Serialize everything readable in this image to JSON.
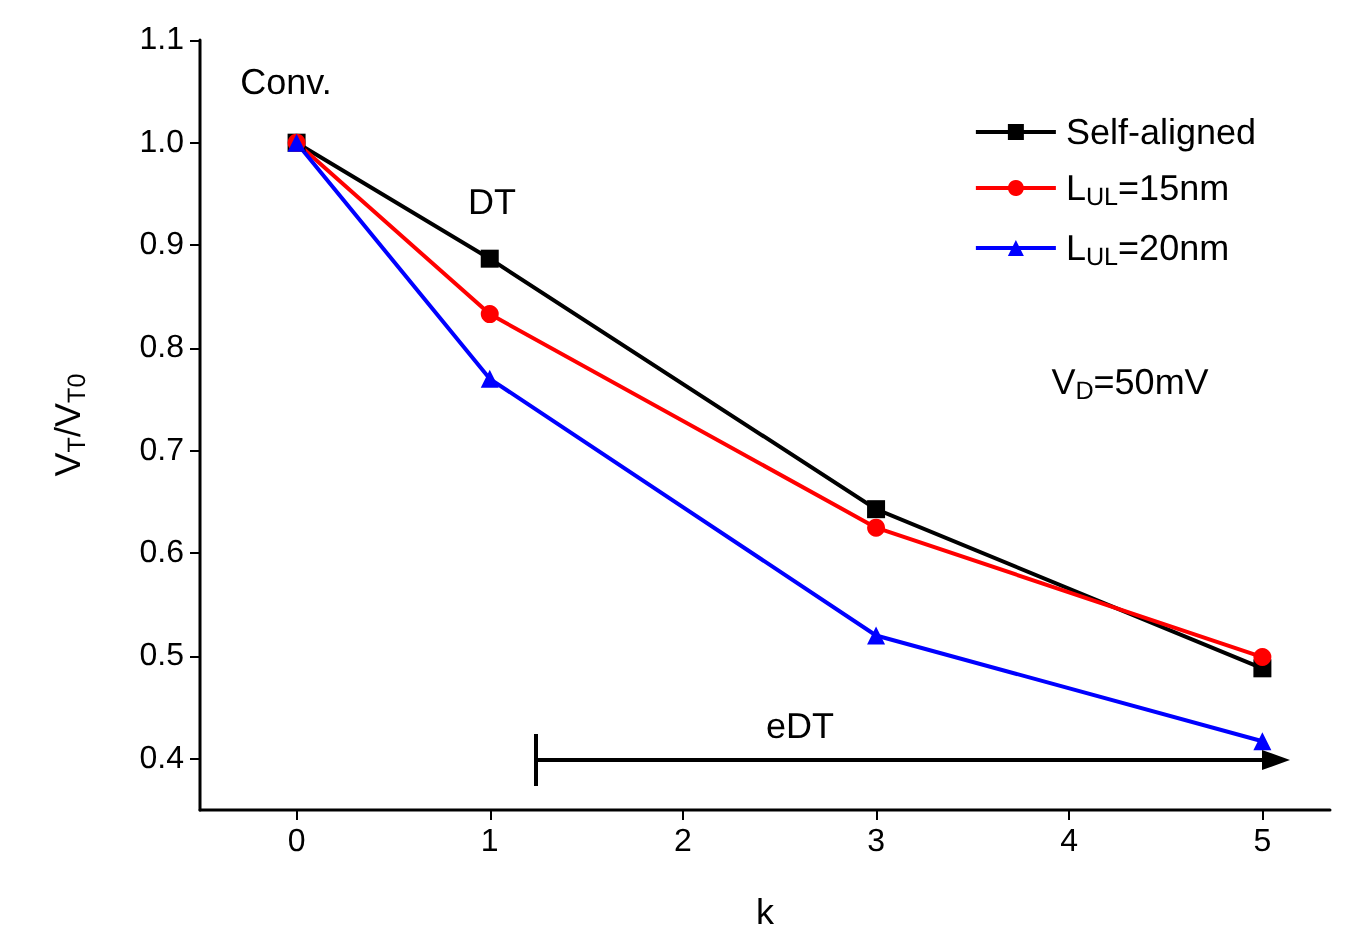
{
  "chart_data": {
    "type": "line",
    "xlabel": "k",
    "ylabel": "V$_{T}$/V$_{T0}$",
    "x": [
      0,
      1,
      3,
      5
    ],
    "series": [
      {
        "name": "Self-aligned",
        "color": "#000000",
        "marker": "square",
        "values": [
          1.0,
          0.887,
          0.643,
          0.488
        ]
      },
      {
        "name": "L$_{UL}$=15nm",
        "color": "#ff0000",
        "marker": "circle",
        "values": [
          1.0,
          0.833,
          0.625,
          0.499
        ]
      },
      {
        "name": "L$_{UL}$=20nm",
        "color": "#0000ff",
        "marker": "triangle",
        "values": [
          1.0,
          0.77,
          0.52,
          0.417
        ]
      }
    ],
    "xlim": [
      -0.5,
      5.35
    ],
    "xticks": [
      0,
      1,
      2,
      3,
      4,
      5
    ],
    "ylim": [
      0.35,
      1.1
    ],
    "yticks": [
      0.4,
      0.5,
      0.6,
      0.7,
      0.8,
      0.9,
      {
        "value": 1.0,
        "label": "1.0"
      },
      1.1
    ],
    "grid": false,
    "legend": "top right",
    "line_style": "solid",
    "annotations": [
      "Conv.",
      "DT",
      "V$_{D}$=50mV",
      "eDT"
    ]
  }
}
